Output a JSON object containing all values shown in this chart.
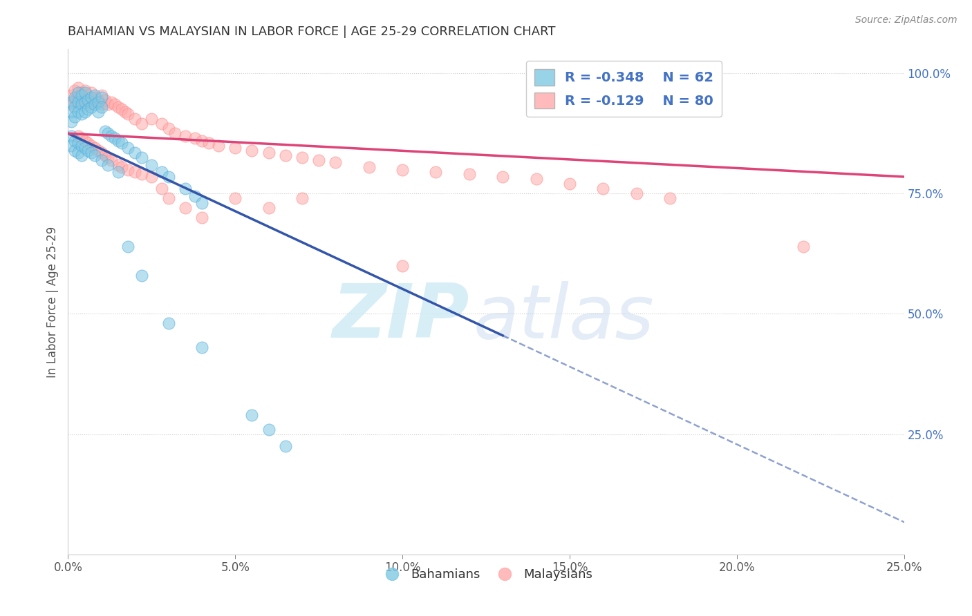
{
  "title": "BAHAMIAN VS MALAYSIAN IN LABOR FORCE | AGE 25-29 CORRELATION CHART",
  "source": "Source: ZipAtlas.com",
  "ylabel": "In Labor Force | Age 25-29",
  "xlim": [
    0.0,
    0.25
  ],
  "ylim": [
    0.0,
    1.05
  ],
  "xtick_labels": [
    "0.0%",
    "5.0%",
    "10.0%",
    "15.0%",
    "20.0%",
    "25.0%"
  ],
  "xtick_values": [
    0.0,
    0.05,
    0.1,
    0.15,
    0.2,
    0.25
  ],
  "ytick_labels_right": [
    "100.0%",
    "75.0%",
    "50.0%",
    "25.0%"
  ],
  "ytick_values_right": [
    1.0,
    0.75,
    0.5,
    0.25
  ],
  "legend_blue_r": "R = -0.348",
  "legend_blue_n": "N = 62",
  "legend_pink_r": "R = -0.129",
  "legend_pink_n": "N = 80",
  "blue_color": "#7ec8e3",
  "pink_color": "#ffaaaa",
  "trend_blue": "#3355aa",
  "trend_pink": "#dd4477",
  "watermark_zip": "ZIP",
  "watermark_atlas": "atlas",
  "background_color": "#ffffff",
  "blue_trend_x0": 0.0,
  "blue_trend_y0": 0.875,
  "blue_trend_x1": 0.13,
  "blue_trend_y1": 0.455,
  "pink_trend_x0": 0.0,
  "pink_trend_y0": 0.875,
  "pink_trend_x1": 0.25,
  "pink_trend_y1": 0.785,
  "blue_scatter_x": [
    0.001,
    0.001,
    0.001,
    0.002,
    0.002,
    0.002,
    0.003,
    0.003,
    0.003,
    0.004,
    0.004,
    0.004,
    0.005,
    0.005,
    0.005,
    0.006,
    0.006,
    0.007,
    0.007,
    0.008,
    0.008,
    0.009,
    0.009,
    0.01,
    0.01,
    0.011,
    0.012,
    0.013,
    0.014,
    0.015,
    0.016,
    0.018,
    0.02,
    0.022,
    0.025,
    0.028,
    0.03,
    0.035,
    0.038,
    0.04,
    0.001,
    0.001,
    0.002,
    0.002,
    0.003,
    0.003,
    0.004,
    0.004,
    0.005,
    0.006,
    0.007,
    0.008,
    0.01,
    0.012,
    0.015,
    0.018,
    0.022,
    0.03,
    0.04,
    0.055,
    0.06,
    0.065
  ],
  "blue_scatter_y": [
    0.94,
    0.92,
    0.9,
    0.95,
    0.93,
    0.91,
    0.96,
    0.94,
    0.92,
    0.955,
    0.935,
    0.915,
    0.96,
    0.94,
    0.92,
    0.945,
    0.925,
    0.95,
    0.93,
    0.955,
    0.935,
    0.94,
    0.92,
    0.95,
    0.93,
    0.88,
    0.875,
    0.87,
    0.865,
    0.86,
    0.855,
    0.845,
    0.835,
    0.825,
    0.81,
    0.795,
    0.785,
    0.76,
    0.745,
    0.73,
    0.87,
    0.85,
    0.86,
    0.84,
    0.855,
    0.835,
    0.85,
    0.83,
    0.845,
    0.84,
    0.835,
    0.83,
    0.82,
    0.81,
    0.795,
    0.64,
    0.58,
    0.48,
    0.43,
    0.29,
    0.26,
    0.225
  ],
  "pink_scatter_x": [
    0.001,
    0.001,
    0.002,
    0.002,
    0.003,
    0.003,
    0.004,
    0.004,
    0.005,
    0.005,
    0.006,
    0.006,
    0.007,
    0.007,
    0.008,
    0.009,
    0.01,
    0.01,
    0.011,
    0.012,
    0.013,
    0.014,
    0.015,
    0.016,
    0.017,
    0.018,
    0.02,
    0.022,
    0.025,
    0.028,
    0.03,
    0.032,
    0.035,
    0.038,
    0.04,
    0.042,
    0.045,
    0.05,
    0.055,
    0.06,
    0.065,
    0.07,
    0.075,
    0.08,
    0.09,
    0.1,
    0.11,
    0.12,
    0.13,
    0.14,
    0.15,
    0.16,
    0.17,
    0.18,
    0.003,
    0.004,
    0.005,
    0.006,
    0.007,
    0.008,
    0.009,
    0.01,
    0.011,
    0.012,
    0.013,
    0.015,
    0.016,
    0.018,
    0.02,
    0.022,
    0.025,
    0.028,
    0.03,
    0.035,
    0.04,
    0.05,
    0.06,
    0.07,
    0.1,
    0.22
  ],
  "pink_scatter_y": [
    0.955,
    0.935,
    0.965,
    0.945,
    0.97,
    0.95,
    0.96,
    0.94,
    0.965,
    0.945,
    0.955,
    0.935,
    0.96,
    0.94,
    0.95,
    0.945,
    0.955,
    0.935,
    0.945,
    0.935,
    0.94,
    0.935,
    0.93,
    0.925,
    0.92,
    0.915,
    0.905,
    0.895,
    0.905,
    0.895,
    0.885,
    0.875,
    0.87,
    0.865,
    0.86,
    0.855,
    0.85,
    0.845,
    0.84,
    0.835,
    0.83,
    0.825,
    0.82,
    0.815,
    0.805,
    0.8,
    0.795,
    0.79,
    0.785,
    0.78,
    0.77,
    0.76,
    0.75,
    0.74,
    0.87,
    0.865,
    0.86,
    0.855,
    0.85,
    0.845,
    0.84,
    0.835,
    0.83,
    0.825,
    0.82,
    0.81,
    0.805,
    0.8,
    0.795,
    0.79,
    0.785,
    0.76,
    0.74,
    0.72,
    0.7,
    0.74,
    0.72,
    0.74,
    0.6,
    0.64
  ]
}
